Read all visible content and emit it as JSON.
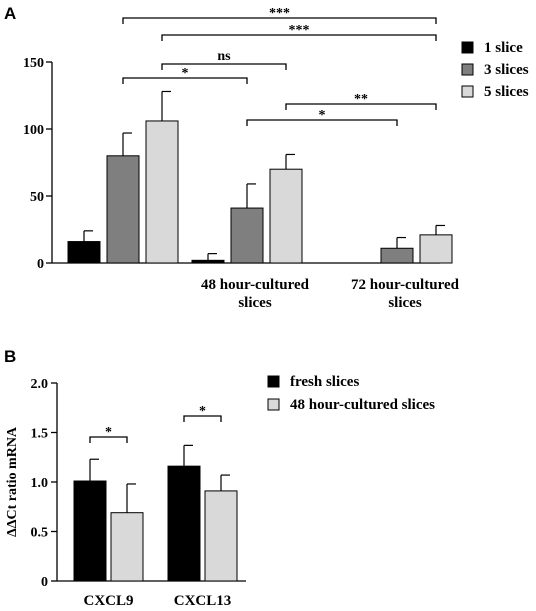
{
  "panels": {
    "a": {
      "letter": "A"
    },
    "b": {
      "letter": "B"
    }
  },
  "colors": {
    "black": "#000000",
    "dark_gray": "#7f7f7f",
    "light_gray": "#d9d9d9"
  },
  "chart_data": [
    {
      "type": "bar",
      "panel": "A",
      "title": "",
      "xlabel": "",
      "ylabel": "",
      "ylim": [
        0,
        150
      ],
      "yticks": [
        0,
        50,
        100,
        150
      ],
      "grid": false,
      "legend_position": "top-right",
      "categories": [
        "",
        "48 hour-cultured slices",
        "72 hour-cultured slices"
      ],
      "series": [
        {
          "name": "1 slice",
          "color": "#000000",
          "values": [
            16,
            2,
            0
          ],
          "errors": [
            8,
            5,
            0
          ]
        },
        {
          "name": "3 slices",
          "color": "#7f7f7f",
          "values": [
            80,
            41,
            11
          ],
          "errors": [
            17,
            18,
            8
          ]
        },
        {
          "name": "5 slices",
          "color": "#d9d9d9",
          "values": [
            106,
            70,
            21
          ],
          "errors": [
            22,
            11,
            7
          ]
        }
      ],
      "annotations": [
        {
          "label": "***",
          "from": "3 slices|",
          "to": "5 slices|72 hour-cultured slices"
        },
        {
          "label": "***",
          "from": "5 slices|",
          "to": "5 slices|72 hour-cultured slices"
        },
        {
          "label": "ns",
          "from": "5 slices|",
          "to": "5 slices|48 hour-cultured slices"
        },
        {
          "label": "*",
          "from": "3 slices|",
          "to": "3 slices|48 hour-cultured slices"
        },
        {
          "label": "**",
          "from": "5 slices|48 hour-cultured slices",
          "to": "5 slices|72 hour-cultured slices"
        },
        {
          "label": "*",
          "from": "3 slices|48 hour-cultured slices",
          "to": "3 slices|72 hour-cultured slices"
        }
      ]
    },
    {
      "type": "bar",
      "panel": "B",
      "title": "",
      "xlabel": "",
      "ylabel": "ΔΔCt ratio mRNA",
      "ylim": [
        0,
        2.0
      ],
      "yticks": [
        "0",
        "0.5",
        "1.0",
        "1.5",
        "2.0"
      ],
      "grid": false,
      "legend_position": "top-right",
      "categories": [
        "CXCL9",
        "CXCL13"
      ],
      "series": [
        {
          "name": "fresh slices",
          "color": "#000000",
          "values": [
            1.01,
            1.16
          ],
          "errors": [
            0.22,
            0.21
          ]
        },
        {
          "name": "48 hour-cultured slices",
          "color": "#d9d9d9",
          "values": [
            0.69,
            0.91
          ],
          "errors": [
            0.29,
            0.16
          ]
        }
      ],
      "annotations": [
        {
          "label": "*",
          "from": "fresh slices|CXCL9",
          "to": "48 hour-cultured slices|CXCL9"
        },
        {
          "label": "*",
          "from": "fresh slices|CXCL13",
          "to": "48 hour-cultured slices|CXCL13"
        }
      ]
    }
  ]
}
